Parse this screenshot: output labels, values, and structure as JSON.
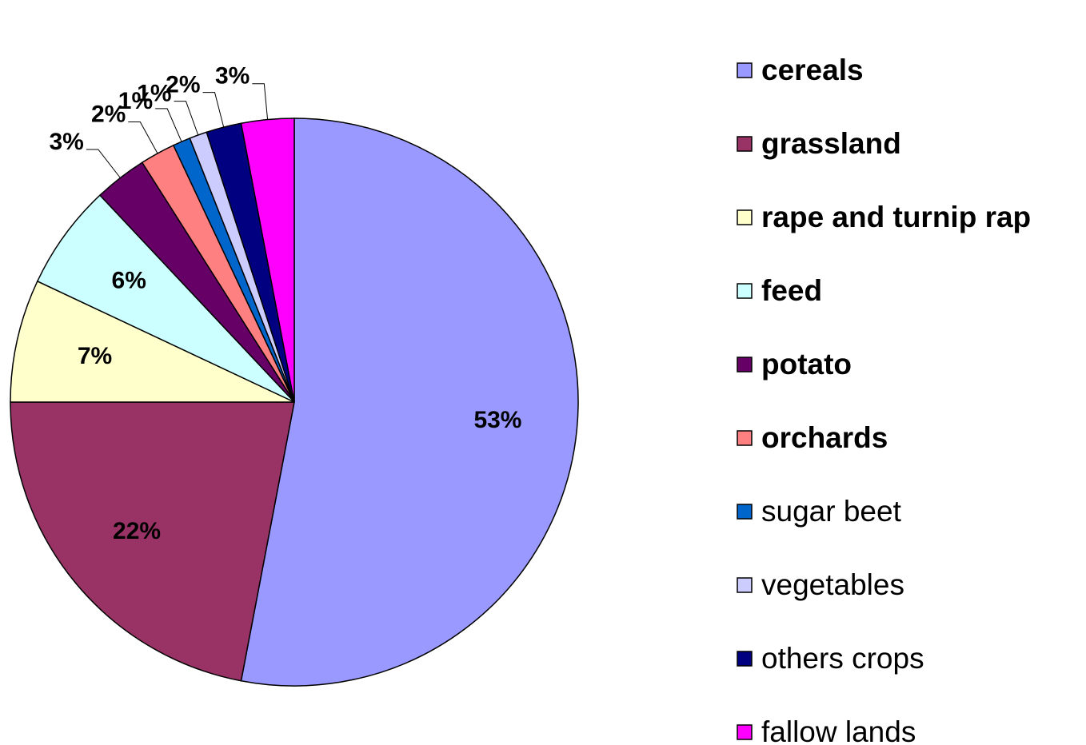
{
  "chart_data": {
    "type": "pie",
    "categories": [
      "cereals",
      "grassland",
      "rape and turnip rap",
      "feed",
      "potato",
      "orchards",
      "sugar beet",
      "vegetables",
      "others crops",
      "fallow lands"
    ],
    "values": [
      53,
      22,
      7,
      6,
      3,
      2,
      1,
      1,
      2,
      3
    ],
    "value_labels": [
      "53%",
      "22%",
      "7%",
      "6%",
      "3%",
      "2%",
      "1%",
      "1%",
      "2%",
      "3%"
    ],
    "colors": [
      "#9999ff",
      "#993366",
      "#ffffcc",
      "#ccffff",
      "#660066",
      "#ff8080",
      "#0066cc",
      "#ccccff",
      "#000080",
      "#ff00ff"
    ]
  }
}
